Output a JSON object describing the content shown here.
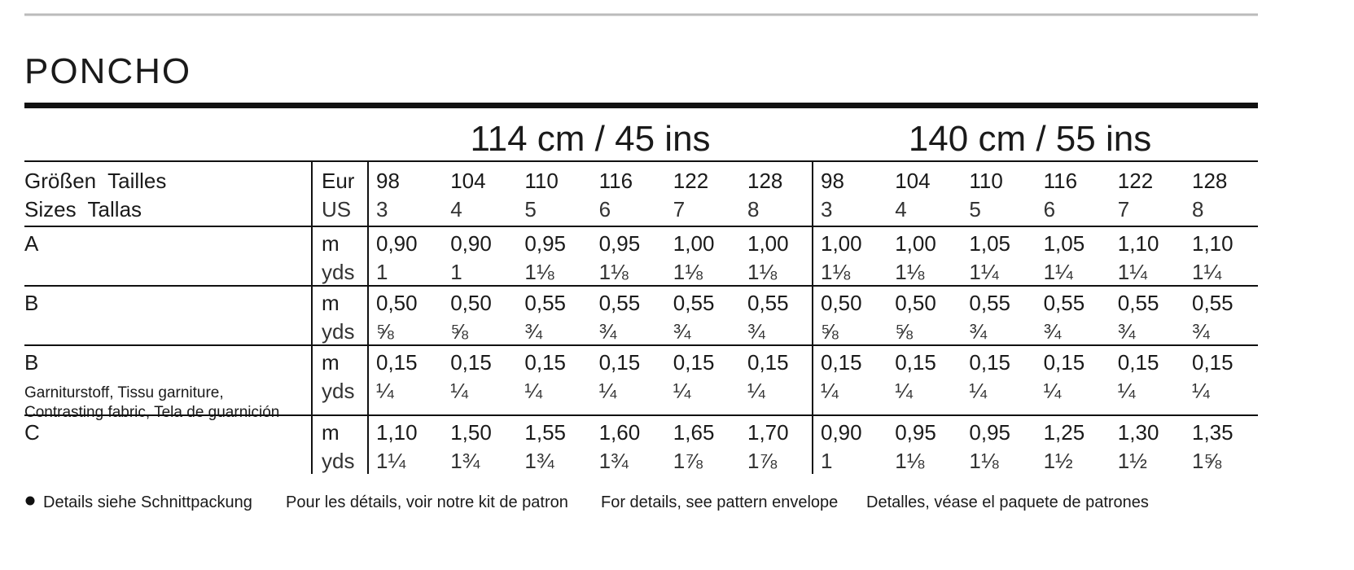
{
  "title": "PONCHO",
  "table": {
    "groups": [
      "114 cm / 45 ins",
      "140 cm / 55 ins"
    ],
    "size_label": [
      "Größen  Tailles",
      "Sizes  Tallas"
    ],
    "size_units": [
      "Eur",
      "US"
    ],
    "sizes_eur": [
      "98",
      "104",
      "110",
      "116",
      "122",
      "128",
      "98",
      "104",
      "110",
      "116",
      "122",
      "128"
    ],
    "sizes_us": [
      "3",
      "4",
      "5",
      "6",
      "7",
      "8",
      "3",
      "4",
      "5",
      "6",
      "7",
      "8"
    ],
    "rows": [
      {
        "label": "A",
        "units": [
          "m",
          "yds"
        ],
        "m": [
          "0,90",
          "0,90",
          "0,95",
          "0,95",
          "1,00",
          "1,00",
          "1,00",
          "1,00",
          "1,05",
          "1,05",
          "1,10",
          "1,10"
        ],
        "yds": [
          "1",
          "1",
          "1⅛",
          "1⅛",
          "1⅛",
          "1⅛",
          "1⅛",
          "1⅛",
          "1¼",
          "1¼",
          "1¼",
          "1¼"
        ]
      },
      {
        "label": "B",
        "units": [
          "m",
          "yds"
        ],
        "m": [
          "0,50",
          "0,50",
          "0,55",
          "0,55",
          "0,55",
          "0,55",
          "0,50",
          "0,50",
          "0,55",
          "0,55",
          "0,55",
          "0,55"
        ],
        "yds": [
          "⅝",
          "⅝",
          "¾",
          "¾",
          "¾",
          "¾",
          "⅝",
          "⅝",
          "¾",
          "¾",
          "¾",
          "¾"
        ]
      },
      {
        "label": "B",
        "sublabel": [
          "Garniturstoff, Tissu garniture,",
          "Contrasting fabric, Tela de guarnición"
        ],
        "units": [
          "m",
          "yds"
        ],
        "m": [
          "0,15",
          "0,15",
          "0,15",
          "0,15",
          "0,15",
          "0,15",
          "0,15",
          "0,15",
          "0,15",
          "0,15",
          "0,15",
          "0,15"
        ],
        "yds": [
          "¼",
          "¼",
          "¼",
          "¼",
          "¼",
          "¼",
          "¼",
          "¼",
          "¼",
          "¼",
          "¼",
          "¼"
        ]
      },
      {
        "label": "C",
        "units": [
          "m",
          "yds"
        ],
        "m": [
          "1,10",
          "1,50",
          "1,55",
          "1,60",
          "1,65",
          "1,70",
          "0,90",
          "0,95",
          "0,95",
          "1,25",
          "1,30",
          "1,35"
        ],
        "yds": [
          "1¼",
          "1¾",
          "1¾",
          "1¾",
          "1⅞",
          "1⅞",
          "1",
          "1⅛",
          "1⅛",
          "1½",
          "1½",
          "1⅝"
        ]
      }
    ]
  },
  "footer": {
    "notes": [
      "Details siehe Schnittpackung",
      "Pour les détails, voir notre kit de patron",
      "For details, see pattern envelope",
      "Detalles, véase el paquete de patrones"
    ]
  }
}
